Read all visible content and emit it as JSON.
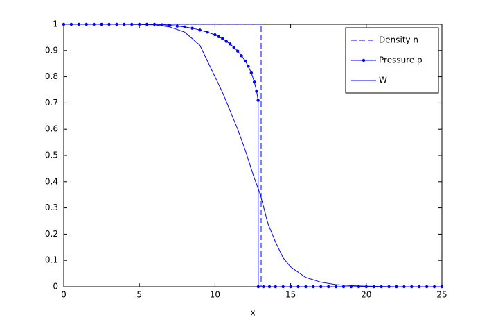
{
  "chart_data": {
    "type": "line",
    "xlabel": "x",
    "xlim": [
      0,
      25
    ],
    "ylim": [
      0,
      1
    ],
    "xticks": [
      0,
      5,
      10,
      15,
      20,
      25
    ],
    "yticks": [
      0,
      0.1,
      0.2,
      0.3,
      0.4,
      0.5,
      0.6,
      0.7,
      0.8,
      0.9,
      1
    ],
    "legend_position": "upper right",
    "series": [
      {
        "name": "Density n",
        "color": "#0000ff",
        "line_style": "dashed",
        "marker": "none",
        "x": [
          0,
          13.05,
          13.05,
          25
        ],
        "values": [
          1,
          1,
          0,
          0
        ]
      },
      {
        "name": "Pressure p",
        "color": "#0000ff",
        "line_style": "solid",
        "marker": "dot",
        "x": [
          0,
          0.5,
          1,
          1.5,
          2,
          2.5,
          3,
          3.5,
          4,
          4.5,
          5,
          5.5,
          6,
          6.5,
          7,
          7.5,
          8,
          8.5,
          9,
          9.5,
          10,
          10.25,
          10.5,
          10.75,
          11,
          11.25,
          11.5,
          11.75,
          12,
          12.2,
          12.4,
          12.6,
          12.75,
          12.85,
          12.86,
          13.2,
          13.6,
          14,
          14.5,
          15,
          15.5,
          16,
          16.5,
          17,
          17.5,
          18,
          18.5,
          19,
          19.5,
          20,
          20.5,
          21,
          21.5,
          22,
          22.5,
          23,
          23.5,
          24,
          24.5,
          25
        ],
        "values": [
          1,
          1,
          1,
          1,
          1,
          1,
          1,
          1,
          1,
          1,
          1,
          1,
          1,
          0.998,
          0.996,
          0.993,
          0.99,
          0.985,
          0.978,
          0.97,
          0.96,
          0.953,
          0.945,
          0.935,
          0.925,
          0.912,
          0.898,
          0.88,
          0.86,
          0.84,
          0.815,
          0.78,
          0.745,
          0.71,
          0,
          0,
          0,
          0,
          0,
          0,
          0,
          0,
          0,
          0,
          0,
          0,
          0,
          0,
          0,
          0,
          0,
          0,
          0,
          0,
          0,
          0,
          0,
          0,
          0,
          0
        ]
      },
      {
        "name": "W",
        "color": "#0000ff",
        "line_style": "solid",
        "marker": "none",
        "x": [
          0,
          2,
          4,
          6,
          7,
          8,
          9,
          10,
          10.5,
          11,
          11.5,
          12,
          12.5,
          13,
          13.5,
          14,
          14.5,
          15,
          16,
          17,
          18,
          19,
          20,
          22,
          25
        ],
        "values": [
          1,
          1,
          1,
          0.998,
          0.99,
          0.97,
          0.92,
          0.8,
          0.74,
          0.67,
          0.6,
          0.52,
          0.43,
          0.35,
          0.24,
          0.17,
          0.11,
          0.075,
          0.035,
          0.017,
          0.008,
          0.004,
          0.002,
          0,
          0
        ]
      }
    ]
  }
}
